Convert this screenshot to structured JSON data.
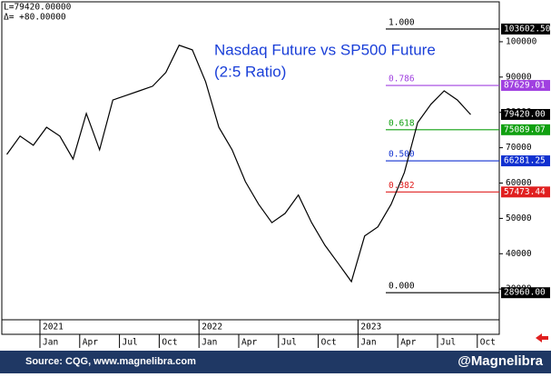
{
  "chart_data": {
    "type": "line",
    "title": "Nasdaq Future vs SP500 Future",
    "subtitle": "(2:5 Ratio)",
    "readout": [
      "L=79420.00000",
      "Δ=  +80.00000"
    ],
    "x": [
      "2020-10",
      "2020-11",
      "2020-12",
      "2021-01",
      "2021-02",
      "2021-03",
      "2021-04",
      "2021-05",
      "2021-06",
      "2021-07",
      "2021-08",
      "2021-09",
      "2021-10",
      "2021-11",
      "2021-12",
      "2022-01",
      "2022-02",
      "2022-03",
      "2022-04",
      "2022-05",
      "2022-06",
      "2022-07",
      "2022-08",
      "2022-09",
      "2022-10",
      "2022-11",
      "2022-12",
      "2023-01",
      "2023-02",
      "2023-03",
      "2023-04",
      "2023-05",
      "2023-06",
      "2023-07",
      "2023-08",
      "2023-09"
    ],
    "values": [
      68100,
      73300,
      70700,
      75800,
      73300,
      66800,
      79700,
      69400,
      83500,
      84800,
      86100,
      87400,
      91300,
      99000,
      97700,
      88700,
      75800,
      69400,
      60400,
      54000,
      48800,
      51400,
      56600,
      48800,
      42400,
      37300,
      32100,
      45000,
      47600,
      54000,
      63000,
      77100,
      82300,
      86100,
      83500,
      79400
    ],
    "color": "#000000",
    "ylim": [
      21300,
      111300
    ],
    "yticks": [
      30000,
      40000,
      50000,
      60000,
      70000,
      80000,
      90000,
      100000
    ],
    "xticks": [
      {
        "value": "2021-01",
        "label": "Jan"
      },
      {
        "value": "2021-04",
        "label": "Apr"
      },
      {
        "value": "2021-07",
        "label": "Jul"
      },
      {
        "value": "2021-10",
        "label": "Oct"
      },
      {
        "value": "2022-01",
        "label": "Jan"
      },
      {
        "value": "2022-04",
        "label": "Apr"
      },
      {
        "value": "2022-07",
        "label": "Jul"
      },
      {
        "value": "2022-10",
        "label": "Oct"
      },
      {
        "value": "2023-01",
        "label": "Jan"
      },
      {
        "value": "2023-04",
        "label": "Apr"
      },
      {
        "value": "2023-07",
        "label": "Jul"
      },
      {
        "value": "2023-10",
        "label": "Oct"
      }
    ],
    "year_ticks": [
      {
        "value": "2021-01",
        "label": "2021"
      },
      {
        "value": "2022-01",
        "label": "2022"
      },
      {
        "value": "2023-01",
        "label": "2023"
      }
    ],
    "last": {
      "value": 79420,
      "label": "79420.00"
    },
    "fib_levels": [
      {
        "ratio": "1.000",
        "value": 103602.5,
        "value_label": "103602.50",
        "color": "#000000"
      },
      {
        "ratio": "0.786",
        "value": 87629.01,
        "value_label": "87629.01",
        "color": "#a040e0"
      },
      {
        "ratio": "0.618",
        "value": 75089.07,
        "value_label": "75089.07",
        "color": "#10a010"
      },
      {
        "ratio": "0.500",
        "value": 66281.25,
        "value_label": "66281.25",
        "color": "#1030d0"
      },
      {
        "ratio": "0.382",
        "value": 57473.44,
        "value_label": "57473.44",
        "color": "#e02020"
      },
      {
        "ratio": "0.000",
        "value": 28960,
        "value_label": "28960.00",
        "color": "#000000"
      }
    ],
    "source": "Source: CQG, www.magnelibra.com",
    "handle": "@Magnelibra"
  }
}
